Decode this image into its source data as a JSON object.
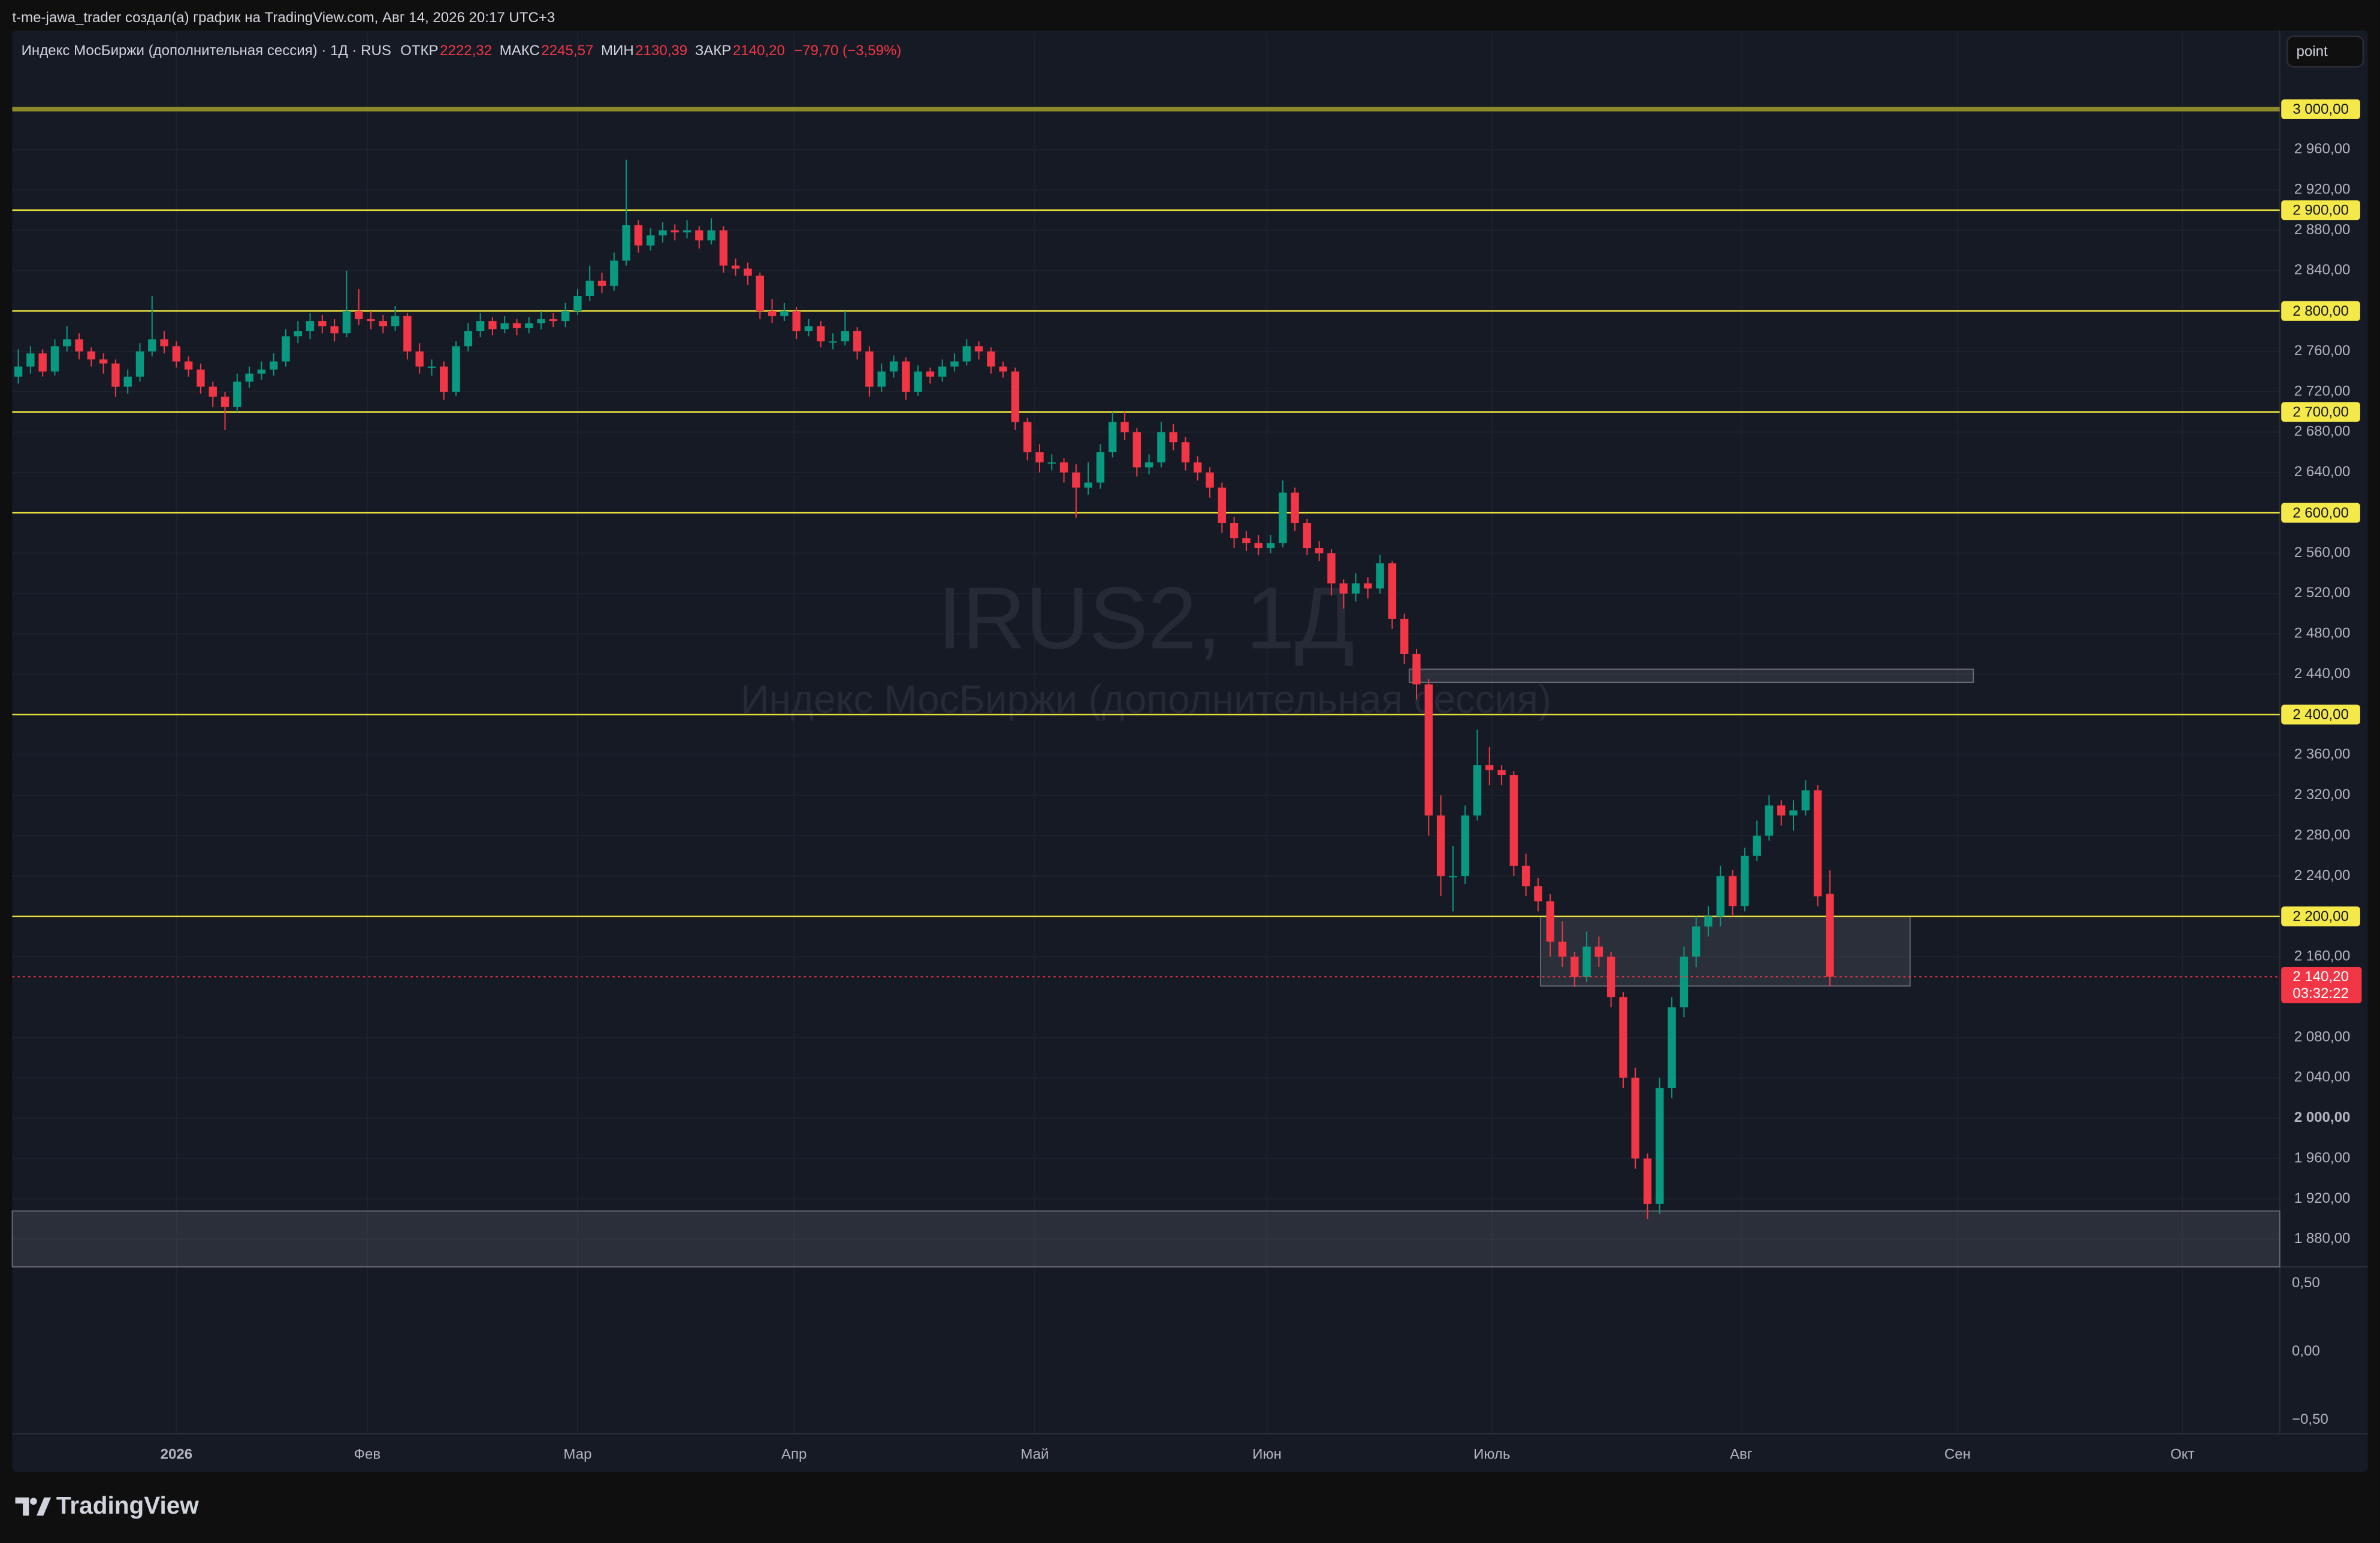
{
  "header": "t-me-jawa_trader создал(а) график на TradingView.com, Авг 14, 2026 20:17 UTC+3",
  "button": "point",
  "logo": "TradingView",
  "chart_data": {
    "type": "candlestick",
    "symbol_title": "Индекс МосБиржи (дополнительная сессия) · 1Д · RUS",
    "legend": [
      {
        "key": "ОТКР",
        "text": "2222,32"
      },
      {
        "key": "МАКС",
        "text": "2245,57"
      },
      {
        "key": "МИН",
        "text": "2130,39"
      },
      {
        "key": "ЗАКР",
        "text": "2140,20"
      }
    ],
    "change": "−79,70 (−3,59%)",
    "watermark_title": "IRUS2, 1Д",
    "watermark_subtitle": "Индекс МосБиржи (дополнительная сессия)",
    "up_color": "#089981",
    "down_color": "#f23645",
    "candles": [
      [
        2735,
        2762,
        2728,
        2745
      ],
      [
        2745,
        2765,
        2738,
        2758
      ],
      [
        2758,
        2762,
        2735,
        2740
      ],
      [
        2740,
        2772,
        2736,
        2765
      ],
      [
        2765,
        2785,
        2760,
        2772
      ],
      [
        2772,
        2778,
        2752,
        2760
      ],
      [
        2760,
        2764,
        2745,
        2752
      ],
      [
        2752,
        2758,
        2738,
        2748
      ],
      [
        2748,
        2752,
        2715,
        2725
      ],
      [
        2725,
        2742,
        2718,
        2735
      ],
      [
        2735,
        2768,
        2730,
        2760
      ],
      [
        2760,
        2815,
        2755,
        2772
      ],
      [
        2772,
        2780,
        2758,
        2765
      ],
      [
        2765,
        2770,
        2744,
        2750
      ],
      [
        2750,
        2755,
        2735,
        2742
      ],
      [
        2742,
        2748,
        2718,
        2725
      ],
      [
        2725,
        2730,
        2705,
        2715
      ],
      [
        2715,
        2720,
        2682,
        2705
      ],
      [
        2705,
        2738,
        2700,
        2730
      ],
      [
        2730,
        2745,
        2724,
        2738
      ],
      [
        2738,
        2750,
        2732,
        2742
      ],
      [
        2742,
        2758,
        2736,
        2750
      ],
      [
        2750,
        2782,
        2745,
        2775
      ],
      [
        2775,
        2790,
        2768,
        2780
      ],
      [
        2780,
        2798,
        2772,
        2790
      ],
      [
        2790,
        2796,
        2778,
        2785
      ],
      [
        2785,
        2792,
        2770,
        2778
      ],
      [
        2778,
        2840,
        2774,
        2800
      ],
      [
        2800,
        2822,
        2786,
        2792
      ],
      [
        2792,
        2800,
        2782,
        2790
      ],
      [
        2790,
        2796,
        2778,
        2785
      ],
      [
        2785,
        2805,
        2780,
        2795
      ],
      [
        2795,
        2798,
        2752,
        2760
      ],
      [
        2760,
        2768,
        2738,
        2745
      ],
      [
        2745,
        2752,
        2736,
        2745
      ],
      [
        2745,
        2750,
        2712,
        2720
      ],
      [
        2720,
        2770,
        2716,
        2765
      ],
      [
        2765,
        2788,
        2760,
        2780
      ],
      [
        2780,
        2798,
        2774,
        2790
      ],
      [
        2790,
        2794,
        2776,
        2782
      ],
      [
        2782,
        2795,
        2778,
        2788
      ],
      [
        2788,
        2792,
        2776,
        2783
      ],
      [
        2783,
        2794,
        2778,
        2788
      ],
      [
        2788,
        2800,
        2782,
        2792
      ],
      [
        2792,
        2798,
        2784,
        2790
      ],
      [
        2790,
        2808,
        2784,
        2800
      ],
      [
        2800,
        2822,
        2796,
        2815
      ],
      [
        2815,
        2845,
        2810,
        2830
      ],
      [
        2830,
        2838,
        2818,
        2825
      ],
      [
        2825,
        2858,
        2820,
        2850
      ],
      [
        2850,
        2950,
        2845,
        2885
      ],
      [
        2885,
        2890,
        2858,
        2865
      ],
      [
        2865,
        2882,
        2860,
        2875
      ],
      [
        2875,
        2888,
        2868,
        2880
      ],
      [
        2880,
        2886,
        2870,
        2878
      ],
      [
        2878,
        2890,
        2872,
        2880
      ],
      [
        2880,
        2884,
        2862,
        2870
      ],
      [
        2870,
        2892,
        2866,
        2880
      ],
      [
        2880,
        2884,
        2838,
        2845
      ],
      [
        2845,
        2852,
        2835,
        2842
      ],
      [
        2842,
        2848,
        2826,
        2835
      ],
      [
        2835,
        2838,
        2792,
        2800
      ],
      [
        2800,
        2812,
        2788,
        2795
      ],
      [
        2795,
        2808,
        2790,
        2800
      ],
      [
        2800,
        2804,
        2772,
        2780
      ],
      [
        2780,
        2792,
        2775,
        2785
      ],
      [
        2785,
        2790,
        2764,
        2770
      ],
      [
        2770,
        2778,
        2762,
        2770
      ],
      [
        2770,
        2800,
        2766,
        2780
      ],
      [
        2780,
        2784,
        2752,
        2760
      ],
      [
        2760,
        2765,
        2715,
        2725
      ],
      [
        2725,
        2748,
        2720,
        2740
      ],
      [
        2740,
        2756,
        2734,
        2750
      ],
      [
        2750,
        2754,
        2712,
        2720
      ],
      [
        2720,
        2746,
        2716,
        2740
      ],
      [
        2740,
        2744,
        2728,
        2735
      ],
      [
        2735,
        2752,
        2730,
        2745
      ],
      [
        2745,
        2758,
        2740,
        2750
      ],
      [
        2750,
        2772,
        2746,
        2765
      ],
      [
        2765,
        2770,
        2752,
        2760
      ],
      [
        2760,
        2764,
        2738,
        2745
      ],
      [
        2745,
        2750,
        2734,
        2740
      ],
      [
        2740,
        2744,
        2682,
        2690
      ],
      [
        2690,
        2694,
        2652,
        2660
      ],
      [
        2660,
        2668,
        2640,
        2650
      ],
      [
        2650,
        2658,
        2642,
        2650
      ],
      [
        2650,
        2654,
        2630,
        2640
      ],
      [
        2640,
        2648,
        2595,
        2625
      ],
      [
        2625,
        2650,
        2618,
        2630
      ],
      [
        2630,
        2668,
        2624,
        2660
      ],
      [
        2660,
        2700,
        2655,
        2690
      ],
      [
        2690,
        2700,
        2672,
        2680
      ],
      [
        2680,
        2684,
        2636,
        2645
      ],
      [
        2645,
        2658,
        2638,
        2650
      ],
      [
        2650,
        2690,
        2645,
        2680
      ],
      [
        2680,
        2688,
        2662,
        2670
      ],
      [
        2670,
        2675,
        2642,
        2650
      ],
      [
        2650,
        2656,
        2632,
        2640
      ],
      [
        2640,
        2645,
        2615,
        2625
      ],
      [
        2625,
        2630,
        2580,
        2590
      ],
      [
        2590,
        2596,
        2565,
        2575
      ],
      [
        2575,
        2582,
        2562,
        2570
      ],
      [
        2570,
        2578,
        2558,
        2565
      ],
      [
        2565,
        2578,
        2560,
        2570
      ],
      [
        2570,
        2632,
        2566,
        2620
      ],
      [
        2620,
        2625,
        2582,
        2590
      ],
      [
        2590,
        2594,
        2558,
        2565
      ],
      [
        2565,
        2572,
        2552,
        2560
      ],
      [
        2560,
        2564,
        2518,
        2530
      ],
      [
        2530,
        2534,
        2505,
        2520
      ],
      [
        2520,
        2540,
        2512,
        2530
      ],
      [
        2530,
        2536,
        2515,
        2525
      ],
      [
        2525,
        2558,
        2520,
        2550
      ],
      [
        2550,
        2552,
        2485,
        2495
      ],
      [
        2495,
        2500,
        2450,
        2460
      ],
      [
        2460,
        2465,
        2415,
        2430
      ],
      [
        2430,
        2435,
        2280,
        2300
      ],
      [
        2300,
        2320,
        2220,
        2240
      ],
      [
        2240,
        2270,
        2205,
        2240
      ],
      [
        2240,
        2310,
        2232,
        2300
      ],
      [
        2300,
        2385,
        2295,
        2350
      ],
      [
        2350,
        2368,
        2330,
        2345
      ],
      [
        2345,
        2350,
        2330,
        2340
      ],
      [
        2340,
        2344,
        2240,
        2250
      ],
      [
        2250,
        2262,
        2220,
        2230
      ],
      [
        2230,
        2238,
        2205,
        2215
      ],
      [
        2215,
        2222,
        2160,
        2175
      ],
      [
        2175,
        2195,
        2150,
        2160
      ],
      [
        2160,
        2165,
        2130,
        2140
      ],
      [
        2140,
        2185,
        2135,
        2170
      ],
      [
        2170,
        2180,
        2150,
        2160
      ],
      [
        2160,
        2165,
        2110,
        2120
      ],
      [
        2120,
        2125,
        2030,
        2040
      ],
      [
        2040,
        2050,
        1950,
        1960
      ],
      [
        1960,
        1965,
        1900,
        1915
      ],
      [
        1915,
        2040,
        1905,
        2030
      ],
      [
        2030,
        2120,
        2020,
        2110
      ],
      [
        2110,
        2170,
        2100,
        2160
      ],
      [
        2160,
        2200,
        2150,
        2190
      ],
      [
        2190,
        2210,
        2180,
        2200
      ],
      [
        2200,
        2250,
        2190,
        2240
      ],
      [
        2240,
        2246,
        2200,
        2210
      ],
      [
        2210,
        2268,
        2205,
        2260
      ],
      [
        2260,
        2295,
        2255,
        2280
      ],
      [
        2280,
        2320,
        2275,
        2310
      ],
      [
        2310,
        2315,
        2290,
        2300
      ],
      [
        2300,
        2315,
        2285,
        2305
      ],
      [
        2305,
        2335,
        2300,
        2325
      ],
      [
        2325,
        2330,
        2210,
        2219.9
      ],
      [
        2222.32,
        2245.57,
        2130.39,
        2140.2
      ]
    ],
    "xlim": [
      -0.5,
      186
    ],
    "xticks": [
      {
        "value": 13,
        "label": "2026"
      },
      {
        "value": 28.7,
        "label": "Фев"
      },
      {
        "value": 46,
        "label": "Мар"
      },
      {
        "value": 63.8,
        "label": "Апр"
      },
      {
        "value": 83.6,
        "label": "Май"
      },
      {
        "value": 102.7,
        "label": "Июн"
      },
      {
        "value": 121.2,
        "label": "Июль"
      },
      {
        "value": 141.7,
        "label": "Авг"
      },
      {
        "value": 159.5,
        "label": "Сен"
      },
      {
        "value": 178,
        "label": "Окт"
      }
    ],
    "ylim": [
      1852.6,
      3075.2
    ],
    "yticks": [
      {
        "value": 2960,
        "label": "2 960,00"
      },
      {
        "value": 2920,
        "label": "2 920,00"
      },
      {
        "value": 2880,
        "label": "2 880,00"
      },
      {
        "value": 2840,
        "label": "2 840,00"
      },
      {
        "value": 2760,
        "label": "2 760,00"
      },
      {
        "value": 2720,
        "label": "2 720,00"
      },
      {
        "value": 2680,
        "label": "2 680,00"
      },
      {
        "value": 2640,
        "label": "2 640,00"
      },
      {
        "value": 2560,
        "label": "2 560,00"
      },
      {
        "value": 2520,
        "label": "2 520,00"
      },
      {
        "value": 2480,
        "label": "2 480,00"
      },
      {
        "value": 2440,
        "label": "2 440,00"
      },
      {
        "value": 2360,
        "label": "2 360,00"
      },
      {
        "value": 2320,
        "label": "2 320,00"
      },
      {
        "value": 2280,
        "label": "2 280,00"
      },
      {
        "value": 2240,
        "label": "2 240,00"
      },
      {
        "value": 2160,
        "label": "2 160,00"
      },
      {
        "value": 2080,
        "label": "2 080,00"
      },
      {
        "value": 2040,
        "label": "2 040,00"
      },
      {
        "value": 2000,
        "label": "2 000,00"
      },
      {
        "value": 1960,
        "label": "1 960,00"
      },
      {
        "value": 1920,
        "label": "1 920,00"
      },
      {
        "value": 1880,
        "label": "1 880,00"
      }
    ],
    "levels": [
      {
        "value": 3000,
        "label": "3 000,00",
        "color": "#8c8a2a"
      },
      {
        "value": 2900,
        "label": "2 900,00",
        "color": "#e6dd3c"
      },
      {
        "value": 2800,
        "label": "2 800,00",
        "color": "#e6dd3c"
      },
      {
        "value": 2700,
        "label": "2 700,00",
        "color": "#e6dd3c"
      },
      {
        "value": 2600,
        "label": "2 600,00",
        "color": "#e6dd3c"
      },
      {
        "value": 2400,
        "label": "2 400,00",
        "color": "#e6dd3c"
      },
      {
        "value": 2200,
        "label": "2 200,00",
        "color": "#e6dd3c"
      }
    ],
    "zones": [
      {
        "top": 2445,
        "bottom": 2432,
        "start": 114.4,
        "end": 160.8
      },
      {
        "top": 2200,
        "bottom": 2131,
        "start": 125.2,
        "end": 155.6
      },
      {
        "top": 1908,
        "bottom": 1852.6
      }
    ],
    "last_price": {
      "value": 2140.2,
      "label": "2 140,20"
    },
    "countdown": "03:32:22",
    "indicator": {
      "ylim": [
        -0.6,
        0.62
      ],
      "yticks": [
        {
          "value": 0.5,
          "label": "0,50"
        },
        {
          "value": 0,
          "label": "0,00"
        },
        {
          "value": -0.5,
          "label": "−0,50"
        }
      ]
    },
    "grid": true
  }
}
